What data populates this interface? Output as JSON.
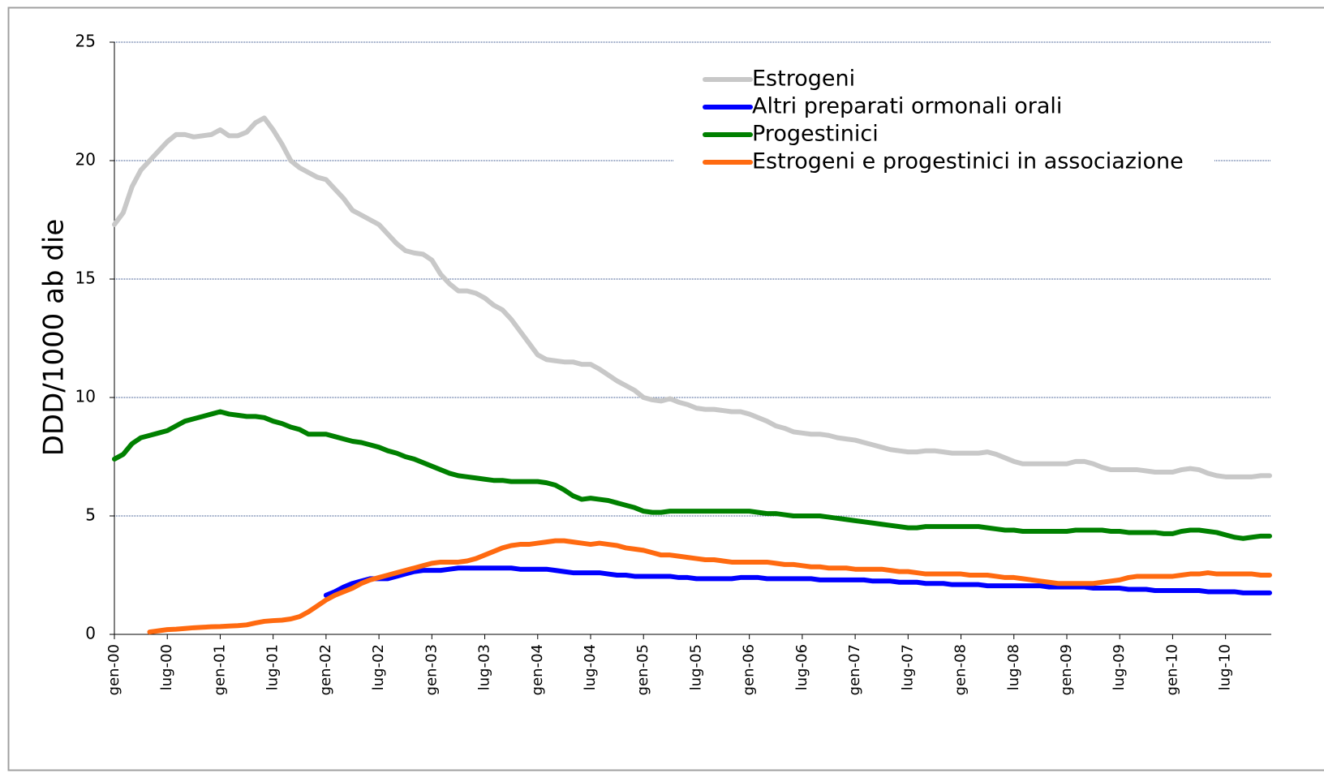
{
  "chart_data": {
    "type": "line",
    "y_label": "DDD/1000 ab die",
    "ylim": [
      0,
      25
    ],
    "yticks": [
      0,
      5,
      10,
      15,
      20,
      25
    ],
    "grid": true,
    "legend": "top-right",
    "categories": [
      "gen-00",
      null,
      null,
      null,
      null,
      null,
      "lug-00",
      null,
      null,
      null,
      null,
      null,
      "gen-01",
      null,
      null,
      null,
      null,
      null,
      "lug-01",
      null,
      null,
      null,
      null,
      null,
      "gen-02",
      null,
      null,
      null,
      null,
      null,
      "lug-02",
      null,
      null,
      null,
      null,
      null,
      "gen-03",
      null,
      null,
      null,
      null,
      null,
      "lug-03",
      null,
      null,
      null,
      null,
      null,
      "gen-04",
      null,
      null,
      null,
      null,
      null,
      "lug-04",
      null,
      null,
      null,
      null,
      null,
      "gen-05",
      null,
      null,
      null,
      null,
      null,
      "lug-05",
      null,
      null,
      null,
      null,
      null,
      "gen-06",
      null,
      null,
      null,
      null,
      null,
      "lug-06",
      null,
      null,
      null,
      null,
      null,
      "gen-07",
      null,
      null,
      null,
      null,
      null,
      "lug-07",
      null,
      null,
      null,
      null,
      null,
      "gen-08",
      null,
      null,
      null,
      null,
      null,
      "lug-08",
      null,
      null,
      null,
      null,
      null,
      "gen-09",
      null,
      null,
      null,
      null,
      null,
      "lug-09",
      null,
      null,
      null,
      null,
      null,
      "gen-10",
      null,
      null,
      null,
      null,
      null,
      "lug-10",
      null,
      null,
      null,
      null,
      null
    ],
    "series": [
      {
        "name": "Estrogeni",
        "color": "#c8c8c8",
        "values": [
          17.3,
          17.8,
          18.9,
          19.6,
          20.0,
          20.4,
          20.8,
          21.1,
          21.1,
          21.0,
          21.05,
          21.1,
          21.3,
          21.05,
          21.05,
          21.2,
          21.6,
          21.8,
          21.3,
          20.7,
          20.0,
          19.7,
          19.5,
          19.3,
          19.2,
          18.8,
          18.4,
          17.9,
          17.7,
          17.5,
          17.3,
          16.9,
          16.5,
          16.2,
          16.1,
          16.05,
          15.8,
          15.2,
          14.8,
          14.5,
          14.5,
          14.4,
          14.2,
          13.9,
          13.7,
          13.3,
          12.8,
          12.3,
          11.8,
          11.6,
          11.55,
          11.5,
          11.5,
          11.4,
          11.4,
          11.2,
          10.95,
          10.7,
          10.5,
          10.3,
          10.0,
          9.9,
          9.85,
          9.95,
          9.8,
          9.7,
          9.55,
          9.5,
          9.5,
          9.45,
          9.4,
          9.4,
          9.3,
          9.15,
          9.0,
          8.8,
          8.7,
          8.55,
          8.5,
          8.45,
          8.45,
          8.4,
          8.3,
          8.25,
          8.2,
          8.1,
          8.0,
          7.9,
          7.8,
          7.75,
          7.7,
          7.7,
          7.75,
          7.75,
          7.7,
          7.65,
          7.65,
          7.65,
          7.65,
          7.7,
          7.6,
          7.45,
          7.3,
          7.2,
          7.2,
          7.2,
          7.2,
          7.2,
          7.2,
          7.3,
          7.3,
          7.2,
          7.05,
          6.95,
          6.95,
          6.95,
          6.95,
          6.9,
          6.85,
          6.85,
          6.85,
          6.95,
          7.0,
          6.95,
          6.8,
          6.7,
          6.65,
          6.65,
          6.65,
          6.65,
          6.7,
          6.7
        ]
      },
      {
        "name": "Altri preparati ormonali orali",
        "color": "#0000ff",
        "values": [
          null,
          null,
          null,
          null,
          null,
          null,
          null,
          null,
          null,
          null,
          null,
          null,
          null,
          null,
          null,
          null,
          null,
          null,
          null,
          null,
          null,
          null,
          null,
          null,
          1.65,
          1.8,
          2.0,
          2.15,
          2.25,
          2.35,
          2.35,
          2.35,
          2.45,
          2.55,
          2.65,
          2.7,
          2.7,
          2.7,
          2.75,
          2.8,
          2.8,
          2.8,
          2.8,
          2.8,
          2.8,
          2.8,
          2.75,
          2.75,
          2.75,
          2.75,
          2.7,
          2.65,
          2.6,
          2.6,
          2.6,
          2.6,
          2.55,
          2.5,
          2.5,
          2.45,
          2.45,
          2.45,
          2.45,
          2.45,
          2.4,
          2.4,
          2.35,
          2.35,
          2.35,
          2.35,
          2.35,
          2.4,
          2.4,
          2.4,
          2.35,
          2.35,
          2.35,
          2.35,
          2.35,
          2.35,
          2.3,
          2.3,
          2.3,
          2.3,
          2.3,
          2.3,
          2.25,
          2.25,
          2.25,
          2.2,
          2.2,
          2.2,
          2.15,
          2.15,
          2.15,
          2.1,
          2.1,
          2.1,
          2.1,
          2.05,
          2.05,
          2.05,
          2.05,
          2.05,
          2.05,
          2.05,
          2.0,
          2.0,
          2.0,
          2.0,
          2.0,
          1.95,
          1.95,
          1.95,
          1.95,
          1.9,
          1.9,
          1.9,
          1.85,
          1.85,
          1.85,
          1.85,
          1.85,
          1.85,
          1.8,
          1.8,
          1.8,
          1.8,
          1.75,
          1.75,
          1.75,
          1.75
        ]
      },
      {
        "name": "Progestinici",
        "color": "#008000",
        "values": [
          7.4,
          7.6,
          8.05,
          8.3,
          8.4,
          8.5,
          8.6,
          8.8,
          9.0,
          9.1,
          9.2,
          9.3,
          9.4,
          9.3,
          9.25,
          9.2,
          9.2,
          9.15,
          9.0,
          8.9,
          8.75,
          8.65,
          8.45,
          8.45,
          8.45,
          8.35,
          8.25,
          8.15,
          8.1,
          8.0,
          7.9,
          7.75,
          7.65,
          7.5,
          7.4,
          7.25,
          7.1,
          6.95,
          6.8,
          6.7,
          6.65,
          6.6,
          6.55,
          6.5,
          6.5,
          6.45,
          6.45,
          6.45,
          6.45,
          6.4,
          6.3,
          6.1,
          5.85,
          5.7,
          5.75,
          5.7,
          5.65,
          5.55,
          5.45,
          5.35,
          5.2,
          5.15,
          5.15,
          5.2,
          5.2,
          5.2,
          5.2,
          5.2,
          5.2,
          5.2,
          5.2,
          5.2,
          5.2,
          5.15,
          5.1,
          5.1,
          5.05,
          5.0,
          5.0,
          5.0,
          5.0,
          4.95,
          4.9,
          4.85,
          4.8,
          4.75,
          4.7,
          4.65,
          4.6,
          4.55,
          4.5,
          4.5,
          4.55,
          4.55,
          4.55,
          4.55,
          4.55,
          4.55,
          4.55,
          4.5,
          4.45,
          4.4,
          4.4,
          4.35,
          4.35,
          4.35,
          4.35,
          4.35,
          4.35,
          4.4,
          4.4,
          4.4,
          4.4,
          4.35,
          4.35,
          4.3,
          4.3,
          4.3,
          4.3,
          4.25,
          4.25,
          4.35,
          4.4,
          4.4,
          4.35,
          4.3,
          4.2,
          4.1,
          4.05,
          4.1,
          4.15,
          4.15
        ]
      },
      {
        "name": "Estrogeni e progestinici in associazione",
        "color": "#ff6a10",
        "values": [
          null,
          null,
          null,
          null,
          0.1,
          0.15,
          0.2,
          0.22,
          0.25,
          0.28,
          0.3,
          0.32,
          0.33,
          0.35,
          0.37,
          0.4,
          0.48,
          0.55,
          0.58,
          0.6,
          0.65,
          0.75,
          0.95,
          1.2,
          1.45,
          1.65,
          1.8,
          1.95,
          2.15,
          2.3,
          2.4,
          2.5,
          2.6,
          2.7,
          2.8,
          2.9,
          3.0,
          3.05,
          3.05,
          3.05,
          3.1,
          3.2,
          3.35,
          3.5,
          3.65,
          3.75,
          3.8,
          3.8,
          3.85,
          3.9,
          3.95,
          3.95,
          3.9,
          3.85,
          3.8,
          3.85,
          3.8,
          3.75,
          3.65,
          3.6,
          3.55,
          3.45,
          3.35,
          3.35,
          3.3,
          3.25,
          3.2,
          3.15,
          3.15,
          3.1,
          3.05,
          3.05,
          3.05,
          3.05,
          3.05,
          3.0,
          2.95,
          2.95,
          2.9,
          2.85,
          2.85,
          2.8,
          2.8,
          2.8,
          2.75,
          2.75,
          2.75,
          2.75,
          2.7,
          2.65,
          2.65,
          2.6,
          2.55,
          2.55,
          2.55,
          2.55,
          2.55,
          2.5,
          2.5,
          2.5,
          2.45,
          2.4,
          2.4,
          2.35,
          2.3,
          2.25,
          2.2,
          2.15,
          2.15,
          2.15,
          2.15,
          2.15,
          2.2,
          2.25,
          2.3,
          2.4,
          2.45,
          2.45,
          2.45,
          2.45,
          2.45,
          2.5,
          2.55,
          2.55,
          2.6,
          2.55,
          2.55,
          2.55,
          2.55,
          2.55,
          2.5,
          2.5
        ]
      }
    ]
  }
}
